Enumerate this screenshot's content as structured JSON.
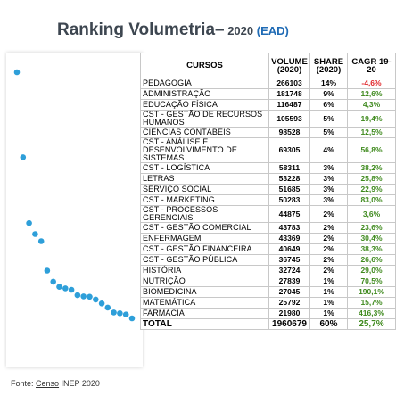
{
  "title": {
    "main": "Ranking Volumetria–",
    "year": " 2020 ",
    "ead": "(EAD)"
  },
  "table": {
    "headers": {
      "cursos": "CURSOS",
      "volume": "VOLUME (2020)",
      "share": "SHARE (2020)",
      "cagr": "CAGR 19-20"
    },
    "rows": [
      {
        "name": "PEDAGOGIA",
        "volume": "266103",
        "share": "14%",
        "cagr": "-4,6%"
      },
      {
        "name": "ADMINISTRAÇÃO",
        "volume": "181748",
        "share": "9%",
        "cagr": "12,6%"
      },
      {
        "name": "EDUCAÇÃO FÍSICA",
        "volume": "116487",
        "share": "6%",
        "cagr": "4,3%"
      },
      {
        "name": "CST - GESTÃO DE RECURSOS HUMANOS",
        "volume": "105593",
        "share": "5%",
        "cagr": "19,4%"
      },
      {
        "name": "CIÊNCIAS CONTÁBEIS",
        "volume": "98528",
        "share": "5%",
        "cagr": "12,5%"
      },
      {
        "name": "CST - ANÁLISE E DESENVOLVIMENTO DE SISTEMAS",
        "volume": "69305",
        "share": "4%",
        "cagr": "56,8%"
      },
      {
        "name": "CST - LOGÍSTICA",
        "volume": "58311",
        "share": "3%",
        "cagr": "38,2%"
      },
      {
        "name": "LETRAS",
        "volume": "53228",
        "share": "3%",
        "cagr": "25,8%"
      },
      {
        "name": "SERVIÇO SOCIAL",
        "volume": "51685",
        "share": "3%",
        "cagr": "22,9%"
      },
      {
        "name": "CST - MARKETING",
        "volume": "50283",
        "share": "3%",
        "cagr": "83,0%"
      },
      {
        "name": "CST - PROCESSOS GERENCIAIS",
        "volume": "44875",
        "share": "2%",
        "cagr": "3,6%"
      },
      {
        "name": "CST - GESTÃO COMERCIAL",
        "volume": "43783",
        "share": "2%",
        "cagr": "23,6%"
      },
      {
        "name": "ENFERMAGEM",
        "volume": "43369",
        "share": "2%",
        "cagr": "30,4%"
      },
      {
        "name": "CST - GESTÃO FINANCEIRA",
        "volume": "40649",
        "share": "2%",
        "cagr": "38,3%"
      },
      {
        "name": "CST - GESTÃO PÚBLICA",
        "volume": "36745",
        "share": "2%",
        "cagr": "26,6%"
      },
      {
        "name": "HISTÓRIA",
        "volume": "32724",
        "share": "2%",
        "cagr": "29,0%"
      },
      {
        "name": "NUTRIÇÃO",
        "volume": "27839",
        "share": "1%",
        "cagr": "70,5%"
      },
      {
        "name": "BIOMEDICINA",
        "volume": "27045",
        "share": "1%",
        "cagr": "190,1%"
      },
      {
        "name": "MATEMÁTICA",
        "volume": "25792",
        "share": "1%",
        "cagr": "15,7%"
      },
      {
        "name": "FARMÁCIA",
        "volume": "21980",
        "share": "1%",
        "cagr": "416,3%"
      }
    ],
    "total": {
      "name": "TOTAL",
      "volume": "1960679",
      "share": "60%",
      "cagr": "25,7%"
    }
  },
  "source": {
    "prefix": "Fonte: ",
    "underlined": "Censo",
    "suffix": " INEP 2020"
  },
  "colors": {
    "dot": "#2e9fd9",
    "positive": "#3f8a1e",
    "negative": "#e0262a",
    "title": "#3d4650",
    "accent": "#1f6bb5"
  },
  "chart_data": {
    "type": "scatter",
    "x": [
      1,
      2,
      3,
      4,
      5,
      6,
      7,
      8,
      9,
      10,
      11,
      12,
      13,
      14,
      15,
      16,
      17,
      18,
      19,
      20
    ],
    "series": [
      {
        "values": [
          266103,
          181748,
          116487,
          105593,
          98528,
          69305,
          58311,
          53228,
          51685,
          50283,
          44875,
          43783,
          43369,
          40649,
          36745,
          32724,
          27839,
          27045,
          25792,
          21980
        ]
      }
    ],
    "xlim": [
      1,
      20
    ],
    "ylim": [
      21980,
      266103
    ],
    "grid": false,
    "axes_visible": false
  }
}
